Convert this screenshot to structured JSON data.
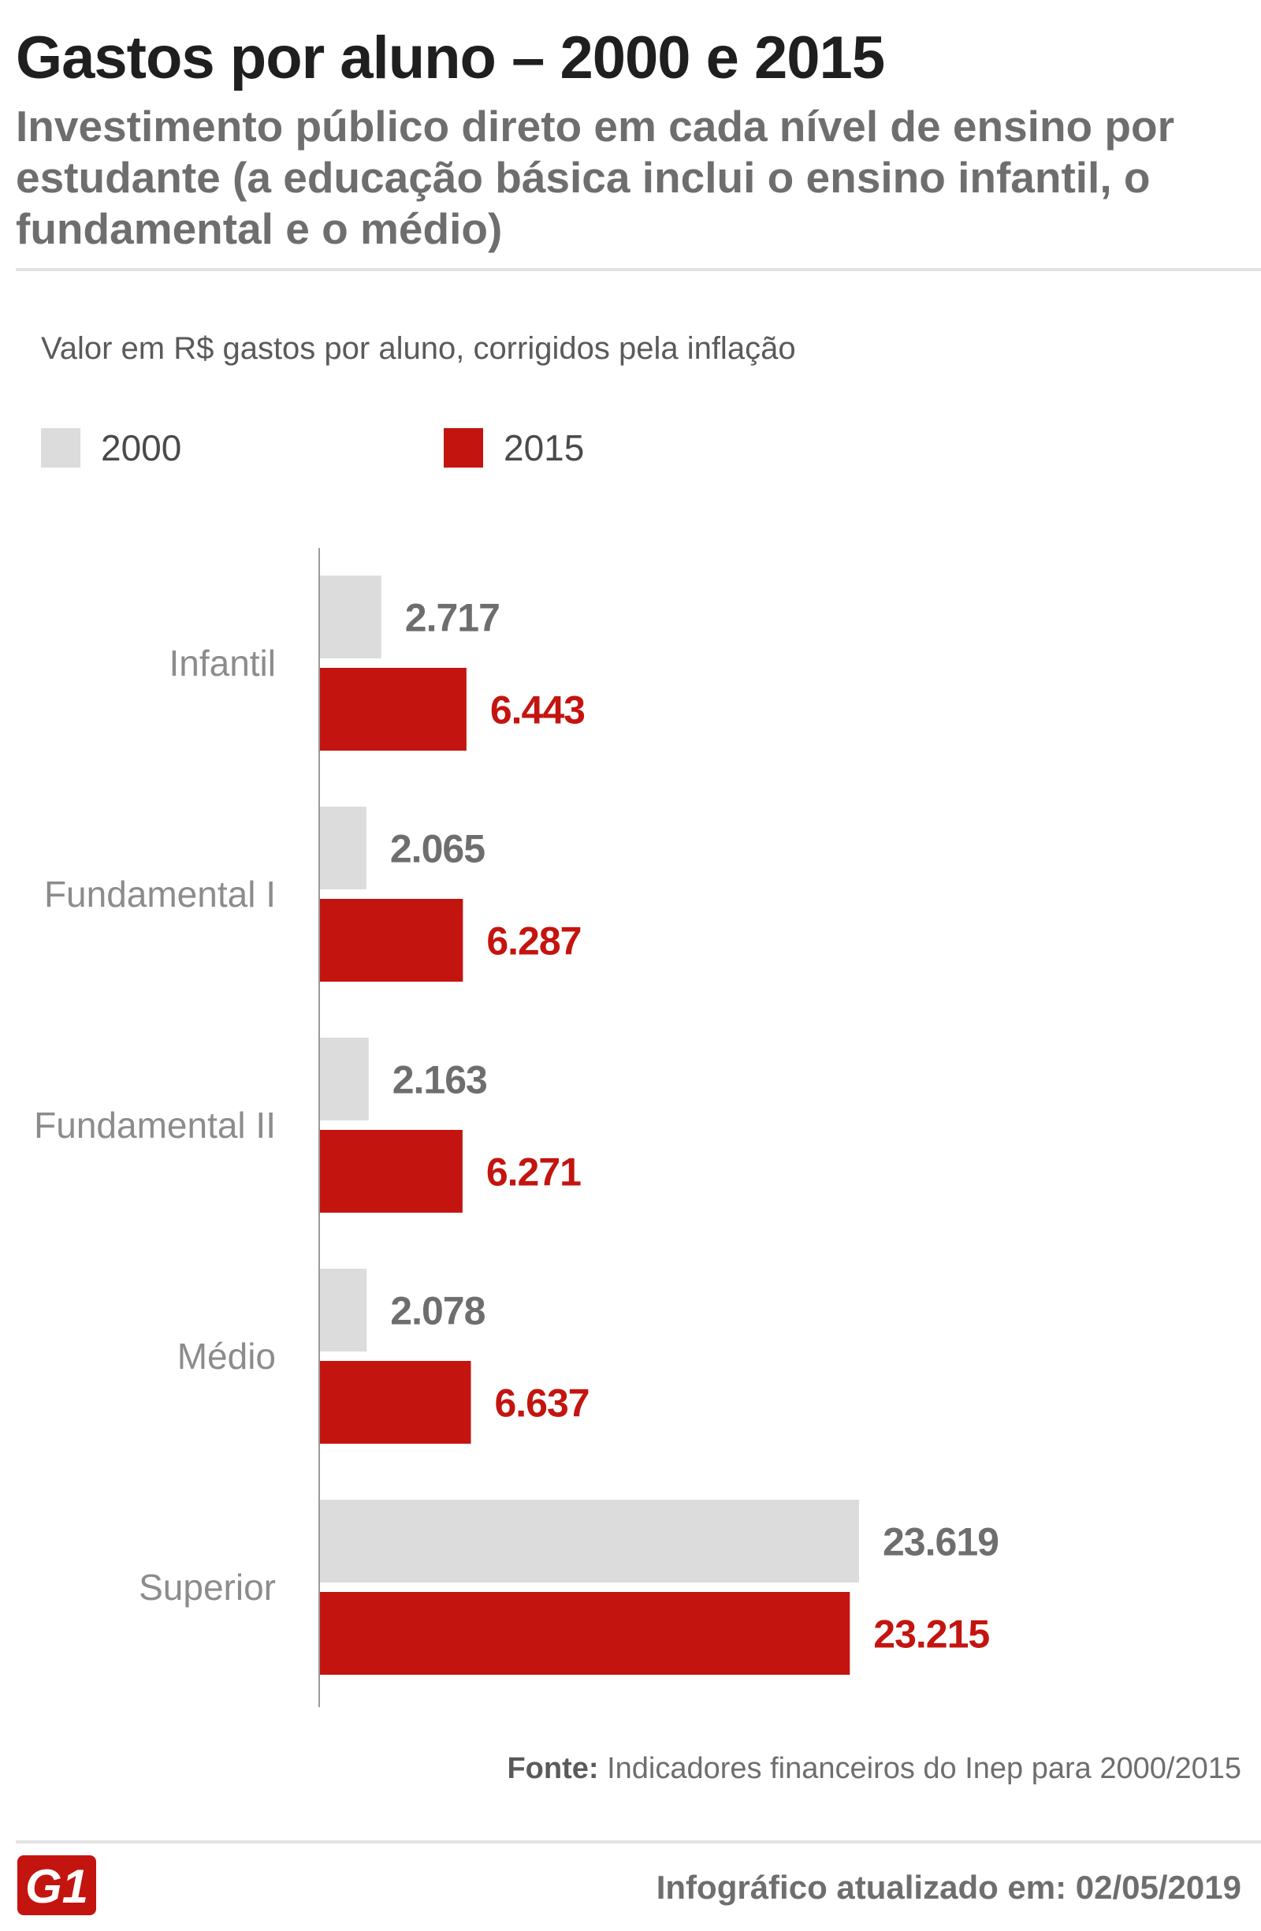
{
  "header": {
    "title": "Gastos por aluno – 2000 e 2015",
    "subtitle": "Investimento público direto em cada nível de ensino por estudante (a educação básica inclui o ensino infantil, o fundamental e o médio)"
  },
  "note": "Valor em R$ gastos por aluno, corrigidos pela inflação",
  "legend": [
    {
      "label": "2000",
      "color": "#dcdcdc"
    },
    {
      "label": "2015",
      "color": "#c4140f"
    }
  ],
  "chart_data": {
    "type": "bar",
    "orientation": "horizontal",
    "title": "Gastos por aluno – 2000 e 2015",
    "xlabel": "",
    "ylabel": "",
    "xlim": [
      0,
      25000
    ],
    "grid": false,
    "legend_position": "top-left",
    "categories": [
      "Infantil",
      "Fundamental I",
      "Fundamental II",
      "Médio",
      "Superior"
    ],
    "series": [
      {
        "name": "2000",
        "color": "#dcdcdc",
        "label_color": "#6e6e6e",
        "values": [
          2717,
          2065,
          2163,
          2078,
          23619
        ],
        "labels": [
          "2.717",
          "2.065",
          "2.163",
          "2.078",
          "23.619"
        ]
      },
      {
        "name": "2015",
        "color": "#c4140f",
        "label_color": "#c4140f",
        "values": [
          6443,
          6287,
          6271,
          6637,
          23215
        ],
        "labels": [
          "6.443",
          "6.287",
          "6.271",
          "6.637",
          "23.215"
        ]
      }
    ]
  },
  "footer": {
    "source_label": "Fonte:",
    "source_text": " Indicadores financeiros do Inep para 2000/2015",
    "logo_text": "G1",
    "updated": "Infográfico atualizado em: 02/05/2019"
  }
}
